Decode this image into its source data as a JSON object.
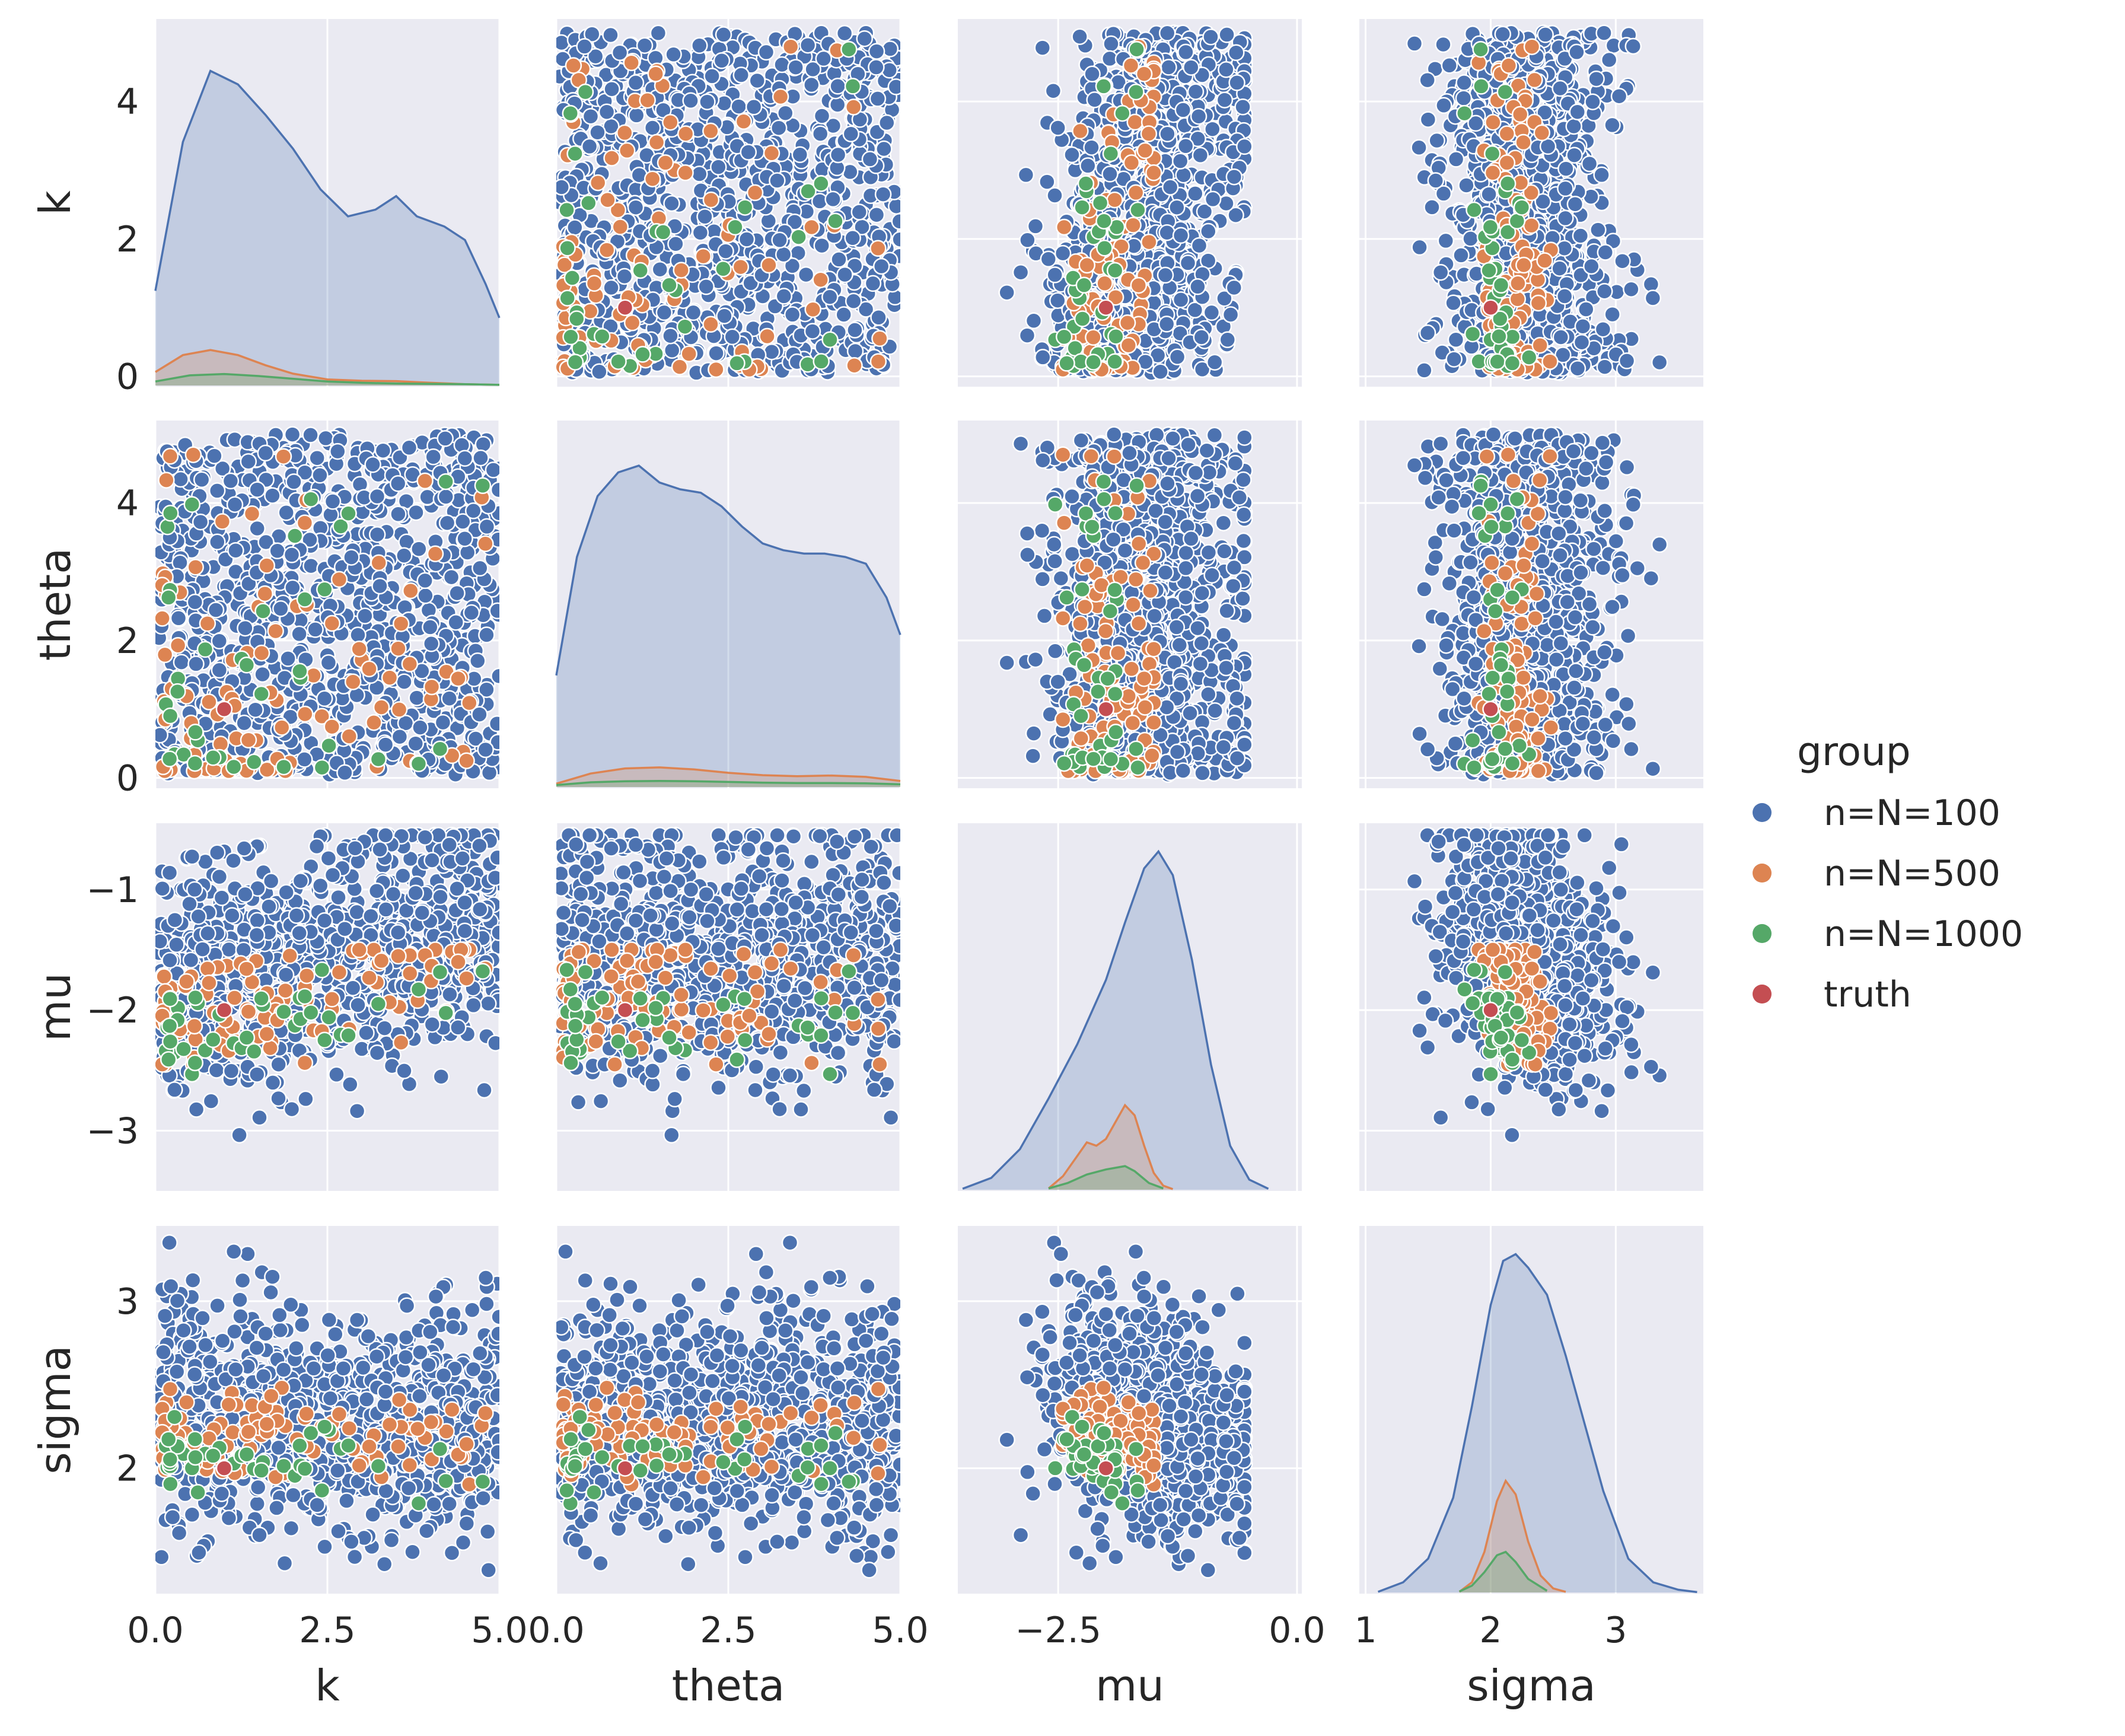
{
  "chart_data": {
    "type": "scatter",
    "subtype": "pairplot",
    "variables": [
      "k",
      "theta",
      "mu",
      "sigma"
    ],
    "diagonal": "kde",
    "grid": true,
    "legend_position": "right",
    "colors": {
      "panel_bg": "#eaeaf2",
      "grid": "#ffffff",
      "n=N=100": "#4c72b0",
      "n=N=500": "#dd8452",
      "n=N=1000": "#55a868",
      "truth": "#c44e52"
    },
    "axes": {
      "k": {
        "label": "k",
        "lim": [
          0,
          5
        ],
        "ticks": [
          0,
          2.5,
          5
        ],
        "tick_labels": [
          "0.0",
          "2.5",
          "5.0"
        ],
        "row_lim": [
          -0.15,
          5.2
        ],
        "row_ticks": [
          0,
          2,
          4
        ],
        "row_tick_labels": [
          "0",
          "2",
          "4"
        ]
      },
      "theta": {
        "label": "theta",
        "lim": [
          0,
          5
        ],
        "ticks": [
          0,
          2.5,
          5
        ],
        "tick_labels": [
          "0.0",
          "2.5",
          "5.0"
        ],
        "row_lim": [
          -0.15,
          5.2
        ],
        "row_ticks": [
          0,
          2,
          4
        ],
        "row_tick_labels": [
          "0",
          "2",
          "4"
        ]
      },
      "mu": {
        "label": "mu",
        "lim": [
          -3.55,
          0.05
        ],
        "ticks": [
          -2.5,
          0
        ],
        "tick_labels": [
          "−2.5",
          "0.0"
        ],
        "row_lim": [
          -3.5,
          -0.45
        ],
        "row_ticks": [
          -3,
          -2,
          -1
        ],
        "row_tick_labels": [
          "−3",
          "−2",
          "−1"
        ]
      },
      "sigma": {
        "label": "sigma",
        "lim": [
          0.95,
          3.7
        ],
        "ticks": [
          1,
          2,
          3
        ],
        "tick_labels": [
          "1",
          "2",
          "3"
        ],
        "row_lim": [
          1.25,
          3.45
        ],
        "row_ticks": [
          2,
          3
        ],
        "row_tick_labels": [
          "2",
          "3"
        ]
      }
    },
    "legend": {
      "title": "group",
      "entries": [
        "n=N=100",
        "n=N=500",
        "n=N=1000",
        "truth"
      ]
    },
    "series": [
      {
        "name": "n=N=100",
        "count": 1000,
        "k": {
          "distribution": "uniform",
          "min": 0.05,
          "max": 5
        },
        "theta": {
          "distribution": "uniform",
          "min": 0.05,
          "max": 5
        },
        "mu": {
          "mean": -1.55,
          "sd": 0.48,
          "min": -3.35,
          "max": -0.55
        },
        "sigma": {
          "mean": 2.3,
          "sd": 0.32,
          "min": 1.32,
          "max": 3.35
        },
        "kde": {
          "k": {
            "x": [
              0,
              0.4,
              0.8,
              1.2,
              1.6,
              2.0,
              2.4,
              2.8,
              3.2,
              3.5,
              3.8,
              4.2,
              4.5,
              4.8,
              5.0
            ],
            "density": [
              0.28,
              0.72,
              0.93,
              0.89,
              0.8,
              0.7,
              0.58,
              0.5,
              0.52,
              0.56,
              0.5,
              0.47,
              0.43,
              0.3,
              0.2
            ]
          },
          "theta": {
            "x": [
              0,
              0.3,
              0.6,
              0.9,
              1.2,
              1.5,
              1.8,
              2.1,
              2.4,
              2.7,
              3.0,
              3.3,
              3.6,
              3.9,
              4.2,
              4.5,
              4.8,
              5.0
            ],
            "density": [
              0.33,
              0.68,
              0.86,
              0.93,
              0.95,
              0.9,
              0.88,
              0.87,
              0.83,
              0.77,
              0.72,
              0.7,
              0.69,
              0.69,
              0.68,
              0.66,
              0.56,
              0.45
            ]
          },
          "mu": {
            "x": [
              -3.5,
              -3.2,
              -2.9,
              -2.6,
              -2.3,
              -2.0,
              -1.8,
              -1.6,
              -1.45,
              -1.3,
              -1.1,
              -0.9,
              -0.7,
              -0.5,
              -0.3
            ],
            "density": [
              0.003,
              0.035,
              0.12,
              0.27,
              0.43,
              0.62,
              0.79,
              0.95,
              1.0,
              0.93,
              0.68,
              0.37,
              0.13,
              0.03,
              0.003
            ]
          },
          "sigma": {
            "x": [
              1.1,
              1.3,
              1.5,
              1.7,
              1.85,
              2.0,
              2.1,
              2.2,
              2.3,
              2.45,
              2.6,
              2.75,
              2.9,
              3.1,
              3.3,
              3.5,
              3.65
            ],
            "density": [
              0.002,
              0.03,
              0.1,
              0.28,
              0.55,
              0.85,
              0.98,
              1.0,
              0.96,
              0.88,
              0.7,
              0.5,
              0.3,
              0.1,
              0.03,
              0.008,
              0.001
            ]
          }
        }
      },
      {
        "name": "n=N=500",
        "count": 100,
        "k": {
          "distribution": "skewed-low",
          "min": 0.1,
          "max": 4.9
        },
        "theta": {
          "distribution": "skewed-low",
          "min": 0.1,
          "max": 4.9
        },
        "mu": {
          "mean": -1.85,
          "sd": 0.22,
          "min": -2.45,
          "max": -1.5
        },
        "sigma": {
          "mean": 2.17,
          "sd": 0.13,
          "min": 1.8,
          "max": 2.55
        },
        "kde": {
          "k": {
            "x": [
              0,
              0.4,
              0.8,
              1.2,
              1.6,
              2.0,
              2.5,
              3.0,
              3.5,
              4.0,
              4.5,
              5.0
            ],
            "density": [
              0.04,
              0.09,
              0.105,
              0.09,
              0.06,
              0.035,
              0.018,
              0.014,
              0.013,
              0.008,
              0.004,
              0.002
            ]
          },
          "theta": {
            "x": [
              0,
              0.5,
              1.0,
              1.5,
              2.0,
              2.5,
              3.0,
              3.5,
              4.0,
              4.5,
              5.0
            ],
            "density": [
              0.01,
              0.04,
              0.055,
              0.058,
              0.052,
              0.042,
              0.035,
              0.032,
              0.034,
              0.03,
              0.018
            ]
          },
          "mu": {
            "x": [
              -2.6,
              -2.45,
              -2.3,
              -2.2,
              -2.1,
              -2.0,
              -1.9,
              -1.8,
              -1.7,
              -1.6,
              -1.5,
              -1.4,
              -1.3
            ],
            "density": [
              0.004,
              0.04,
              0.1,
              0.14,
              0.13,
              0.15,
              0.2,
              0.25,
              0.22,
              0.13,
              0.05,
              0.012,
              0.002
            ]
          },
          "sigma": {
            "x": [
              1.75,
              1.85,
              1.95,
              2.05,
              2.12,
              2.2,
              2.3,
              2.4,
              2.5,
              2.6
            ],
            "density": [
              0.002,
              0.03,
              0.12,
              0.27,
              0.33,
              0.29,
              0.15,
              0.05,
              0.012,
              0.002
            ]
          }
        }
      },
      {
        "name": "n=N=1000",
        "count": 40,
        "k": {
          "distribution": "skewed-low",
          "min": 0.15,
          "max": 4.9
        },
        "theta": {
          "distribution": "skewed-low",
          "min": 0.15,
          "max": 4.9
        },
        "mu": {
          "mean": -2.0,
          "sd": 0.18,
          "min": -2.55,
          "max": -1.6
        },
        "sigma": {
          "mean": 2.05,
          "sd": 0.1,
          "min": 1.78,
          "max": 2.35
        },
        "kde": {
          "k": {
            "x": [
              0,
              0.5,
              1.0,
              1.5,
              2.0,
              2.5,
              3.0,
              3.5,
              4.0,
              4.5,
              5.0
            ],
            "density": [
              0.012,
              0.03,
              0.034,
              0.028,
              0.02,
              0.012,
              0.008,
              0.006,
              0.005,
              0.004,
              0.002
            ]
          },
          "theta": {
            "x": [
              0,
              0.5,
              1.0,
              1.5,
              2.0,
              2.5,
              3.0,
              3.5,
              4.0,
              4.5,
              5.0
            ],
            "density": [
              0.006,
              0.014,
              0.017,
              0.018,
              0.017,
              0.015,
              0.013,
              0.012,
              0.012,
              0.011,
              0.008
            ]
          },
          "mu": {
            "x": [
              -2.6,
              -2.4,
              -2.2,
              -2.0,
              -1.8,
              -1.7,
              -1.55,
              -1.4
            ],
            "density": [
              0.004,
              0.02,
              0.045,
              0.06,
              0.07,
              0.055,
              0.02,
              0.004
            ]
          },
          "sigma": {
            "x": [
              1.75,
              1.85,
              1.95,
              2.05,
              2.12,
              2.2,
              2.3,
              2.45
            ],
            "density": [
              0.003,
              0.02,
              0.06,
              0.11,
              0.12,
              0.09,
              0.04,
              0.005
            ]
          }
        }
      },
      {
        "name": "truth",
        "count": 1,
        "point": {
          "k": 1.0,
          "theta": 1.0,
          "mu": -2.0,
          "sigma": 2.0
        },
        "kde": null
      }
    ]
  }
}
